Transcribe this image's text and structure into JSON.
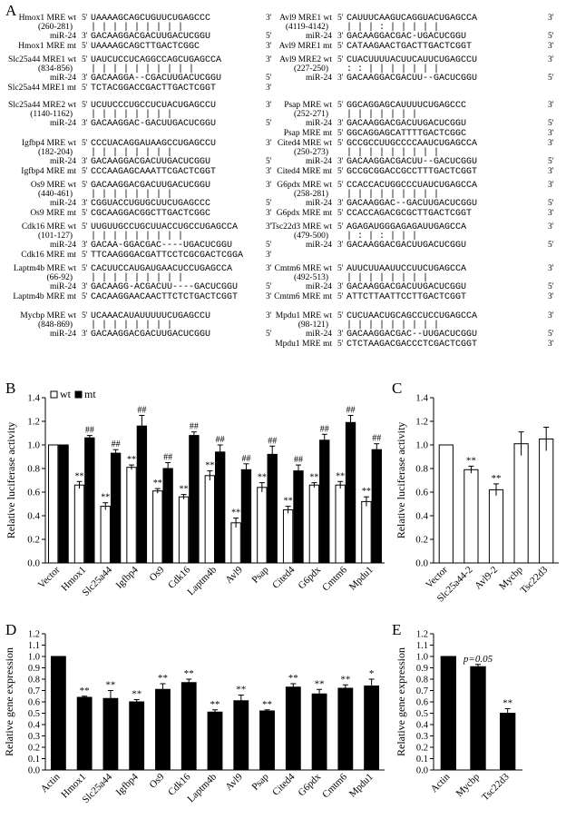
{
  "panels": {
    "A": "A",
    "B": "B",
    "C": "C",
    "D": "D",
    "E": "E"
  },
  "panelA": {
    "left": [
      {
        "wt_label": "Hmox1 MRE wt",
        "pos": "(260-281)",
        "wt_seq": "UAAAAGCAGCUGUUCUGAGCCC",
        "pair": "   |  |  |  | | | |  |  |",
        "mir_label": "miR-24",
        "mir_seq": "GACAAGGACGACUUGACUCGGU",
        "mt_label": "Hmox1 MRE mt",
        "mt_seq": "UAAAAGCAGCTTGACTCGGC"
      },
      {
        "wt_label": "Slc25a44 MRE1 wt",
        "pos": "(834-856)",
        "wt_seq": "UAUCUCCUCAGGCCAGCUGAGCCA",
        "pair": "  |  | |  |  |  | |  | | |",
        "mir_label": "miR-24",
        "mir_seq": "GACAAGGA--CGACUUGACUCGGU",
        "mt_label": "Slc25a44 MRE1 mt",
        "mt_seq": "TCTACGGACCGACTTGACTCGGT"
      },
      {
        "wt_label": "Slc25a44 MRE2 wt",
        "pos": "(1140-1162)",
        "wt_seq": "UCUUCCCUGCCUCUACUGAGCCU",
        "pair": "   |  |  |  |  |  | | |",
        "mir_label": "miR-24",
        "mir_seq": "GACAAGGAC-GACUUGACUCGGU",
        "mt_label": "",
        "mt_seq": ""
      },
      {
        "wt_label": "Igfbp4 MRE wt",
        "pos": "(182-204)",
        "wt_seq": "CCCUACAGGAUAAGCCUGAGCCU",
        "pair": "  |  |  |  |  |  |  | |",
        "mir_label": "miR-24",
        "mir_seq": "GACAAGGACGACUUGACUCGGU",
        "mt_label": "Igfbp4 MRE mt",
        "mt_seq": "CCCAAGAGCAAATTCGACTCGGT"
      },
      {
        "wt_label": "Os9 MRE wt",
        "pos": "(440-461)",
        "wt_seq": "GACAAGGACGACUUGACUCGGU",
        "pair": "  |  |  |  |  |  |  | |",
        "mir_label": "miR-24",
        "mir_seq": "CGGUACCUGUGCUUCUGAGCCC",
        "mt_label": "Os9 MRE mt",
        "mt_seq": "CGCAAGGACGGCTTGACTCGGC"
      },
      {
        "wt_label": "Cdk16 MRE wt",
        "pos": "(101-127)",
        "wt_seq": "UUGUUGCCUGCUUACCUGCCUGAGCCA",
        "pair": "  |  |  |  |  |  |  | | |",
        "mir_label": "miR-24",
        "mir_seq": "GACAA-GGACGAC----UGACUCGGU",
        "mt_label": "Cdk16 MRE mt",
        "mt_seq": "TTCAAGGGACGATTCCTCGCGACTCGGA"
      },
      {
        "wt_label": "Laptm4b MRE wt",
        "pos": "(66-92)",
        "wt_seq": "CACUUCCAUGAUGAACUCCUGAGCCA",
        "pair": "  |  |  |  |  |  |  | | |",
        "mir_label": "miR-24",
        "mir_seq": "GACAAGG-ACGACUU----GACUCGGU",
        "mt_label": "Laptm4b MRE mt",
        "mt_seq": "CACAAGGAACAACTTCTCTGACTCGGT"
      },
      {
        "wt_label": "Mycbp MRE wt",
        "pos": "(848-869)",
        "wt_seq": "UCAAACAUAUUUUUCUGAGCCU",
        "pair": "   |  |  |  |  | | |  |",
        "mir_label": "miR-24",
        "mir_seq": "GACAAGGACGACUUGACUCGGU",
        "mt_label": "",
        "mt_seq": ""
      }
    ],
    "right": [
      {
        "wt_label": "Avl9 MRE1 wt",
        "pos": "(4119-4142)",
        "wt_seq": "CAUUUCAAGUCAGGUACUGAGCCA",
        "pair": "  |  |  |  :  |  |  | | |",
        "mir_label": "miR-24",
        "mir_seq": "GACAAGGACGAC-UGACUCGGU",
        "mt_label": "Avl9 MRE1 mt",
        "mt_seq": "CATAAGAACTGACTTGACTCGGT"
      },
      {
        "wt_label": "Avl9 MRE2 wt",
        "pos": "(227-250)",
        "wt_seq": "CUACUUUUACUUCAUUCUGAGCCU",
        "pair": "  : :  |  |  |  |  | | |",
        "mir_label": "miR-24",
        "mir_seq": "GACAAGGACGACUU--GACUCGGU",
        "mt_label": "",
        "mt_seq": ""
      },
      {
        "wt_label": "Psap MRE wt",
        "pos": "(252-271)",
        "wt_seq": "GGCAGGAGCAUUUUCUGAGCCC",
        "pair": "   |  |  |  |  |  |  |",
        "mir_label": "miR-24",
        "mir_seq": "GACAAGGACGACUUGACUCGGU",
        "mt_label": "Psap MRE mt",
        "mt_seq": "GGCAGGAGCATTTTGACTCGGC"
      },
      {
        "wt_label": "Cited4 MRE wt",
        "pos": "(250-273)",
        "wt_seq": "GCCGCCUUGCCCCAAUCUGAGCCA",
        "pair": "  |  |  |  |  |  |  | | |",
        "mir_label": "miR-24",
        "mir_seq": "GACAAGGACGACUU--GACUCGGU",
        "mt_label": "Cited4 MRE mt",
        "mt_seq": "GCCGCGGACCGCCTTTGACTCGGT"
      },
      {
        "wt_label": "G6pdx MRE wt",
        "pos": "(258-281)",
        "wt_seq": "CCACCACUGGCCCUAUCUGAGCCA",
        "pair": "  |  |  |  |  |  |  | | |",
        "mir_label": "miR-24",
        "mir_seq": "GACAAGGAC--GACUUGACUCGGU",
        "mt_label": "G6pdx MRE mt",
        "mt_seq": "CCACCAGACGCGCTTGACTCGGT"
      },
      {
        "wt_label": "Tsc22d3 MRE wt",
        "pos": "(479-500)",
        "wt_seq": "AGAGAUGGGAGAGAUUGAGCCA",
        "pair": "   |  :  |  :  |  |  |",
        "mir_label": "miR-24",
        "mir_seq": "GACAAGGACGACUUGACUCGGU",
        "mt_label": "",
        "mt_seq": ""
      },
      {
        "wt_label": "Cmtm6 MRE wt",
        "pos": "(492-513)",
        "wt_seq": "AUUCUUAAUUCCUUCUGAGCCA",
        "pair": "  |  |  |  |  |  |  | |",
        "mir_label": "miR-24",
        "mir_seq": "GACAAGGACGACUUGACUCGGU",
        "mt_label": "Cmtm6 MRE mt",
        "mt_seq": "ATTCTTAATTCCTTGACTCGGT"
      },
      {
        "wt_label": "Mpdu1 MRE wt",
        "pos": "(98-121)",
        "wt_seq": "CUCUAACUGCAGCCUCCUGAGCCA",
        "pair": "  |  |  |  |  |  |  | | |",
        "mir_label": "miR-24",
        "mir_seq": "GACAAGGACGAC--UUGACUCGGU",
        "mt_label": "Mpdu1 MRE mt",
        "mt_seq": "CTCTAAGACGACCCTCGACTCGGT"
      }
    ],
    "end5": "5'",
    "end3": "3'"
  },
  "chart_data": [
    {
      "panel": "B",
      "type": "bar",
      "categories": [
        "Vector",
        "Hmox1",
        "Slc25a44",
        "Igfbp4",
        "Os9",
        "Cdk16",
        "Laptm4b",
        "Avl9",
        "Psap",
        "Cited4",
        "G6pdx",
        "Cmtm6",
        "Mpdu1"
      ],
      "series": [
        {
          "name": "wt",
          "values": [
            1.0,
            0.66,
            0.48,
            0.81,
            0.61,
            0.56,
            0.74,
            0.34,
            0.64,
            0.45,
            0.66,
            0.66,
            0.52
          ],
          "errors": [
            0,
            0.03,
            0.03,
            0.02,
            0.02,
            0.02,
            0.04,
            0.04,
            0.04,
            0.03,
            0.02,
            0.03,
            0.04
          ],
          "sig": [
            "",
            "**",
            "**",
            "**",
            "**",
            "**",
            "**",
            "**",
            "**",
            "**",
            "**",
            "**",
            "**"
          ],
          "fill": "#ffffff"
        },
        {
          "name": "mt",
          "values": [
            1.0,
            1.06,
            0.93,
            1.16,
            0.8,
            1.08,
            0.94,
            0.79,
            0.92,
            0.78,
            1.04,
            1.19,
            0.96
          ],
          "errors": [
            0,
            0.02,
            0.03,
            0.09,
            0.05,
            0.03,
            0.06,
            0.05,
            0.07,
            0.05,
            0.05,
            0.06,
            0.05
          ],
          "sig": [
            "",
            "##",
            "##",
            "##",
            "##",
            "##",
            "##",
            "##",
            "##",
            "##",
            "##",
            "##",
            "##"
          ],
          "fill": "#000000"
        }
      ],
      "ylabel": "Relative luciferase activity",
      "ylim": [
        0,
        1.4
      ],
      "yticks": [
        "0.0",
        "0.2",
        "0.4",
        "0.6",
        "0.8",
        "1.0",
        "1.2",
        "1.4"
      ],
      "legend": {
        "wt": "wt",
        "mt": "mt"
      }
    },
    {
      "panel": "C",
      "type": "bar",
      "categories": [
        "Vector",
        "Slc25a44-2",
        "Avl9-2",
        "Mycbp",
        "Tsc22d3"
      ],
      "values": [
        1.0,
        0.79,
        0.62,
        1.01,
        1.05
      ],
      "errors": [
        0,
        0.03,
        0.05,
        0.1,
        0.1
      ],
      "sig": [
        "",
        "**",
        "**",
        "",
        ""
      ],
      "ylabel": "Relative luciferase activity",
      "ylim": [
        0,
        1.4
      ],
      "yticks": [
        "0.0",
        "0.2",
        "0.4",
        "0.6",
        "0.8",
        "1.0",
        "1.2",
        "1.4"
      ]
    },
    {
      "panel": "D",
      "type": "bar",
      "categories": [
        "Actin",
        "Hmox1",
        "Slc25a44",
        "Igfbp4",
        "Os9",
        "Cdk16",
        "Laptm4b",
        "Avl9",
        "Psap",
        "Cited4",
        "G6pdx",
        "Cmtm6",
        "Mpdu1"
      ],
      "values": [
        1.0,
        0.64,
        0.63,
        0.6,
        0.71,
        0.77,
        0.51,
        0.61,
        0.52,
        0.73,
        0.67,
        0.72,
        0.74
      ],
      "errors": [
        0,
        0.01,
        0.07,
        0.02,
        0.05,
        0.03,
        0.02,
        0.05,
        0.01,
        0.03,
        0.04,
        0.03,
        0.06
      ],
      "sig": [
        "",
        "**",
        "**",
        "**",
        "**",
        "**",
        "**",
        "**",
        "**",
        "**",
        "**",
        "**",
        "*"
      ],
      "ylabel": "Relative gene expression",
      "ylim": [
        0,
        1.2
      ],
      "yticks": [
        "0.0",
        "0.1",
        "0.2",
        "0.3",
        "0.4",
        "0.5",
        "0.6",
        "0.7",
        "0.8",
        "0.9",
        "1.0",
        "1.1",
        "1.2"
      ]
    },
    {
      "panel": "E",
      "type": "bar",
      "categories": [
        "Actin",
        "Mycbp",
        "Tsc22d3"
      ],
      "values": [
        1.0,
        0.91,
        0.5
      ],
      "errors": [
        0,
        0.02,
        0.04
      ],
      "sig": [
        "",
        "p=0.05",
        "**"
      ],
      "ylabel": "Relative gene expression",
      "ylim": [
        0,
        1.2
      ],
      "yticks": [
        "0.0",
        "0.1",
        "0.2",
        "0.3",
        "0.4",
        "0.5",
        "0.6",
        "0.7",
        "0.8",
        "0.9",
        "1.0",
        "1.1",
        "1.2"
      ]
    }
  ]
}
